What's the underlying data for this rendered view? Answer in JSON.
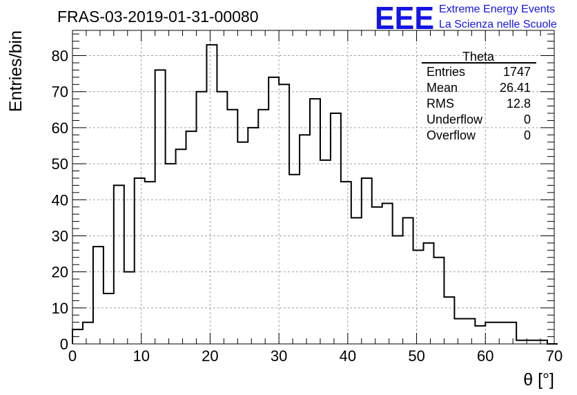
{
  "chart_data": {
    "type": "histogram",
    "title": "FRAS-03-2019-01-31-00080",
    "xlabel": "θ [°]",
    "ylabel": "Entries/bin",
    "xlim": [
      0,
      70
    ],
    "ylim": [
      0,
      87
    ],
    "xticks": [
      0,
      10,
      20,
      30,
      40,
      50,
      60,
      70
    ],
    "yticks": [
      0,
      10,
      20,
      30,
      40,
      50,
      60,
      70,
      80
    ],
    "grid": true,
    "bin_width": 1.5,
    "bins_start": 0,
    "values": [
      4,
      6,
      27,
      14,
      44,
      20,
      46,
      45,
      76,
      50,
      54,
      59,
      70,
      83,
      70,
      65,
      56,
      60,
      65,
      74,
      72,
      47,
      58,
      68,
      51,
      64,
      45,
      35,
      46,
      38,
      39,
      30,
      35,
      26,
      28,
      24,
      13,
      7,
      7,
      5,
      6,
      6,
      6,
      1,
      1,
      1,
      0
    ],
    "legend_position": "top-right"
  },
  "stats": {
    "name": "Theta",
    "rows": [
      {
        "label": "Entries",
        "value": "1747"
      },
      {
        "label": "Mean",
        "value": "26.41"
      },
      {
        "label": "RMS",
        "value": "12.8"
      },
      {
        "label": "Underflow",
        "value": "0"
      },
      {
        "label": "Overflow",
        "value": "0"
      }
    ]
  },
  "logo": {
    "mark": "EEE",
    "line1": "Extreme Energy Events",
    "line2": "La Scienza nelle Scuole",
    "color": "#1414e6"
  }
}
